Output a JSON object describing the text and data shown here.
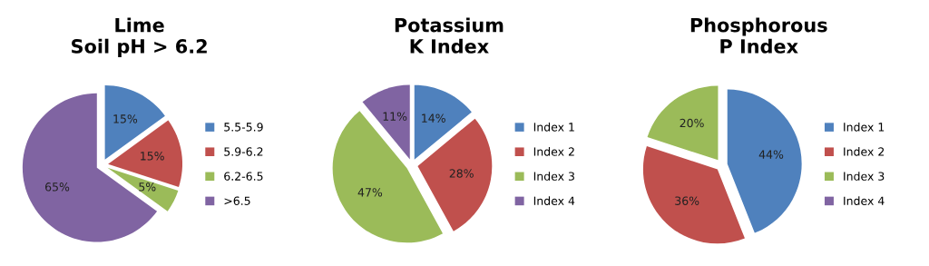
{
  "chart_data": [
    {
      "type": "pie",
      "title": "Lime",
      "subtitle": "Soil pH > 6.2",
      "categories": [
        "5.5-5.9",
        "5.9-6.2",
        "6.2-6.5",
        ">6.5"
      ],
      "values": [
        15,
        15,
        5,
        65
      ],
      "colors": [
        "#4f81bd",
        "#c0504d",
        "#9bbb59",
        "#8064a2"
      ],
      "value_labels": [
        "15%",
        "15%",
        "5%",
        "65%"
      ],
      "legend": "right"
    },
    {
      "type": "pie",
      "title": "Potassium",
      "subtitle": "K Index",
      "categories": [
        "Index 1",
        "Index 2",
        "Index 3",
        "Index 4"
      ],
      "values": [
        14,
        28,
        47,
        11
      ],
      "colors": [
        "#4f81bd",
        "#c0504d",
        "#9bbb59",
        "#8064a2"
      ],
      "value_labels": [
        "14%",
        "28%",
        "47%",
        "11%"
      ],
      "legend": "right"
    },
    {
      "type": "pie",
      "title": "Phosphorous",
      "subtitle": "P Index",
      "categories": [
        "Index 1",
        "Index 2",
        "Index 3",
        "Index 4"
      ],
      "values": [
        44,
        36,
        20,
        0
      ],
      "colors": [
        "#4f81bd",
        "#c0504d",
        "#9bbb59",
        "#8064a2"
      ],
      "value_labels": [
        "44%",
        "36%",
        "20%",
        null
      ],
      "legend": "right"
    }
  ]
}
